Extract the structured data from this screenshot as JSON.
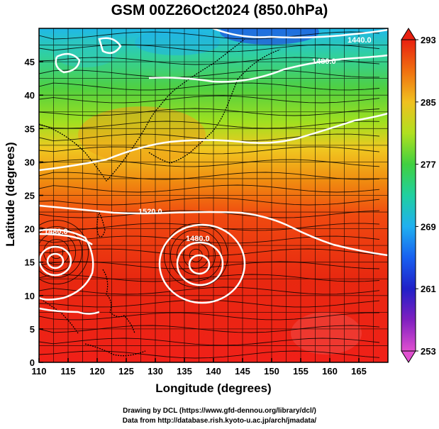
{
  "title": "GSM 00Z26Oct2024 (850.0hPa)",
  "axes": {
    "xlabel": "Longitude (degrees)",
    "ylabel": "Latitude  (degrees)",
    "x_range": [
      110,
      170
    ],
    "y_range": [
      0,
      50
    ],
    "x_ticks": [
      "110",
      "115",
      "120",
      "125",
      "130",
      "135",
      "140",
      "145",
      "150",
      "155",
      "160",
      "165"
    ],
    "y_ticks": [
      "0",
      "5",
      "10",
      "15",
      "20",
      "25",
      "30",
      "35",
      "40",
      "45"
    ]
  },
  "colorbar": {
    "tick_labels": [
      "293",
      "285",
      "277",
      "269",
      "261",
      "253"
    ],
    "range": [
      253,
      293
    ],
    "colors": [
      "#e050d0",
      "#5010c0",
      "#1830e0",
      "#20a0f0",
      "#20d8b0",
      "#40d040",
      "#a0e020",
      "#f0d020",
      "#f09010",
      "#f04010",
      "#e81010"
    ]
  },
  "contour_labels": [
    "1440.0",
    "1480.0",
    "1520.0",
    "1480.0",
    "1480.0"
  ],
  "cyclone_centers": [
    {
      "lon": 113,
      "lat": 16.5
    },
    {
      "lon": 137,
      "lat": 16
    }
  ],
  "credits": {
    "line1": "Drawing by DCL (https://www.gfd-dennou.org/library/dcl/)",
    "line2": "Data from http://database.rish.kyoto-u.ac.jp/arch/jmadata/"
  }
}
